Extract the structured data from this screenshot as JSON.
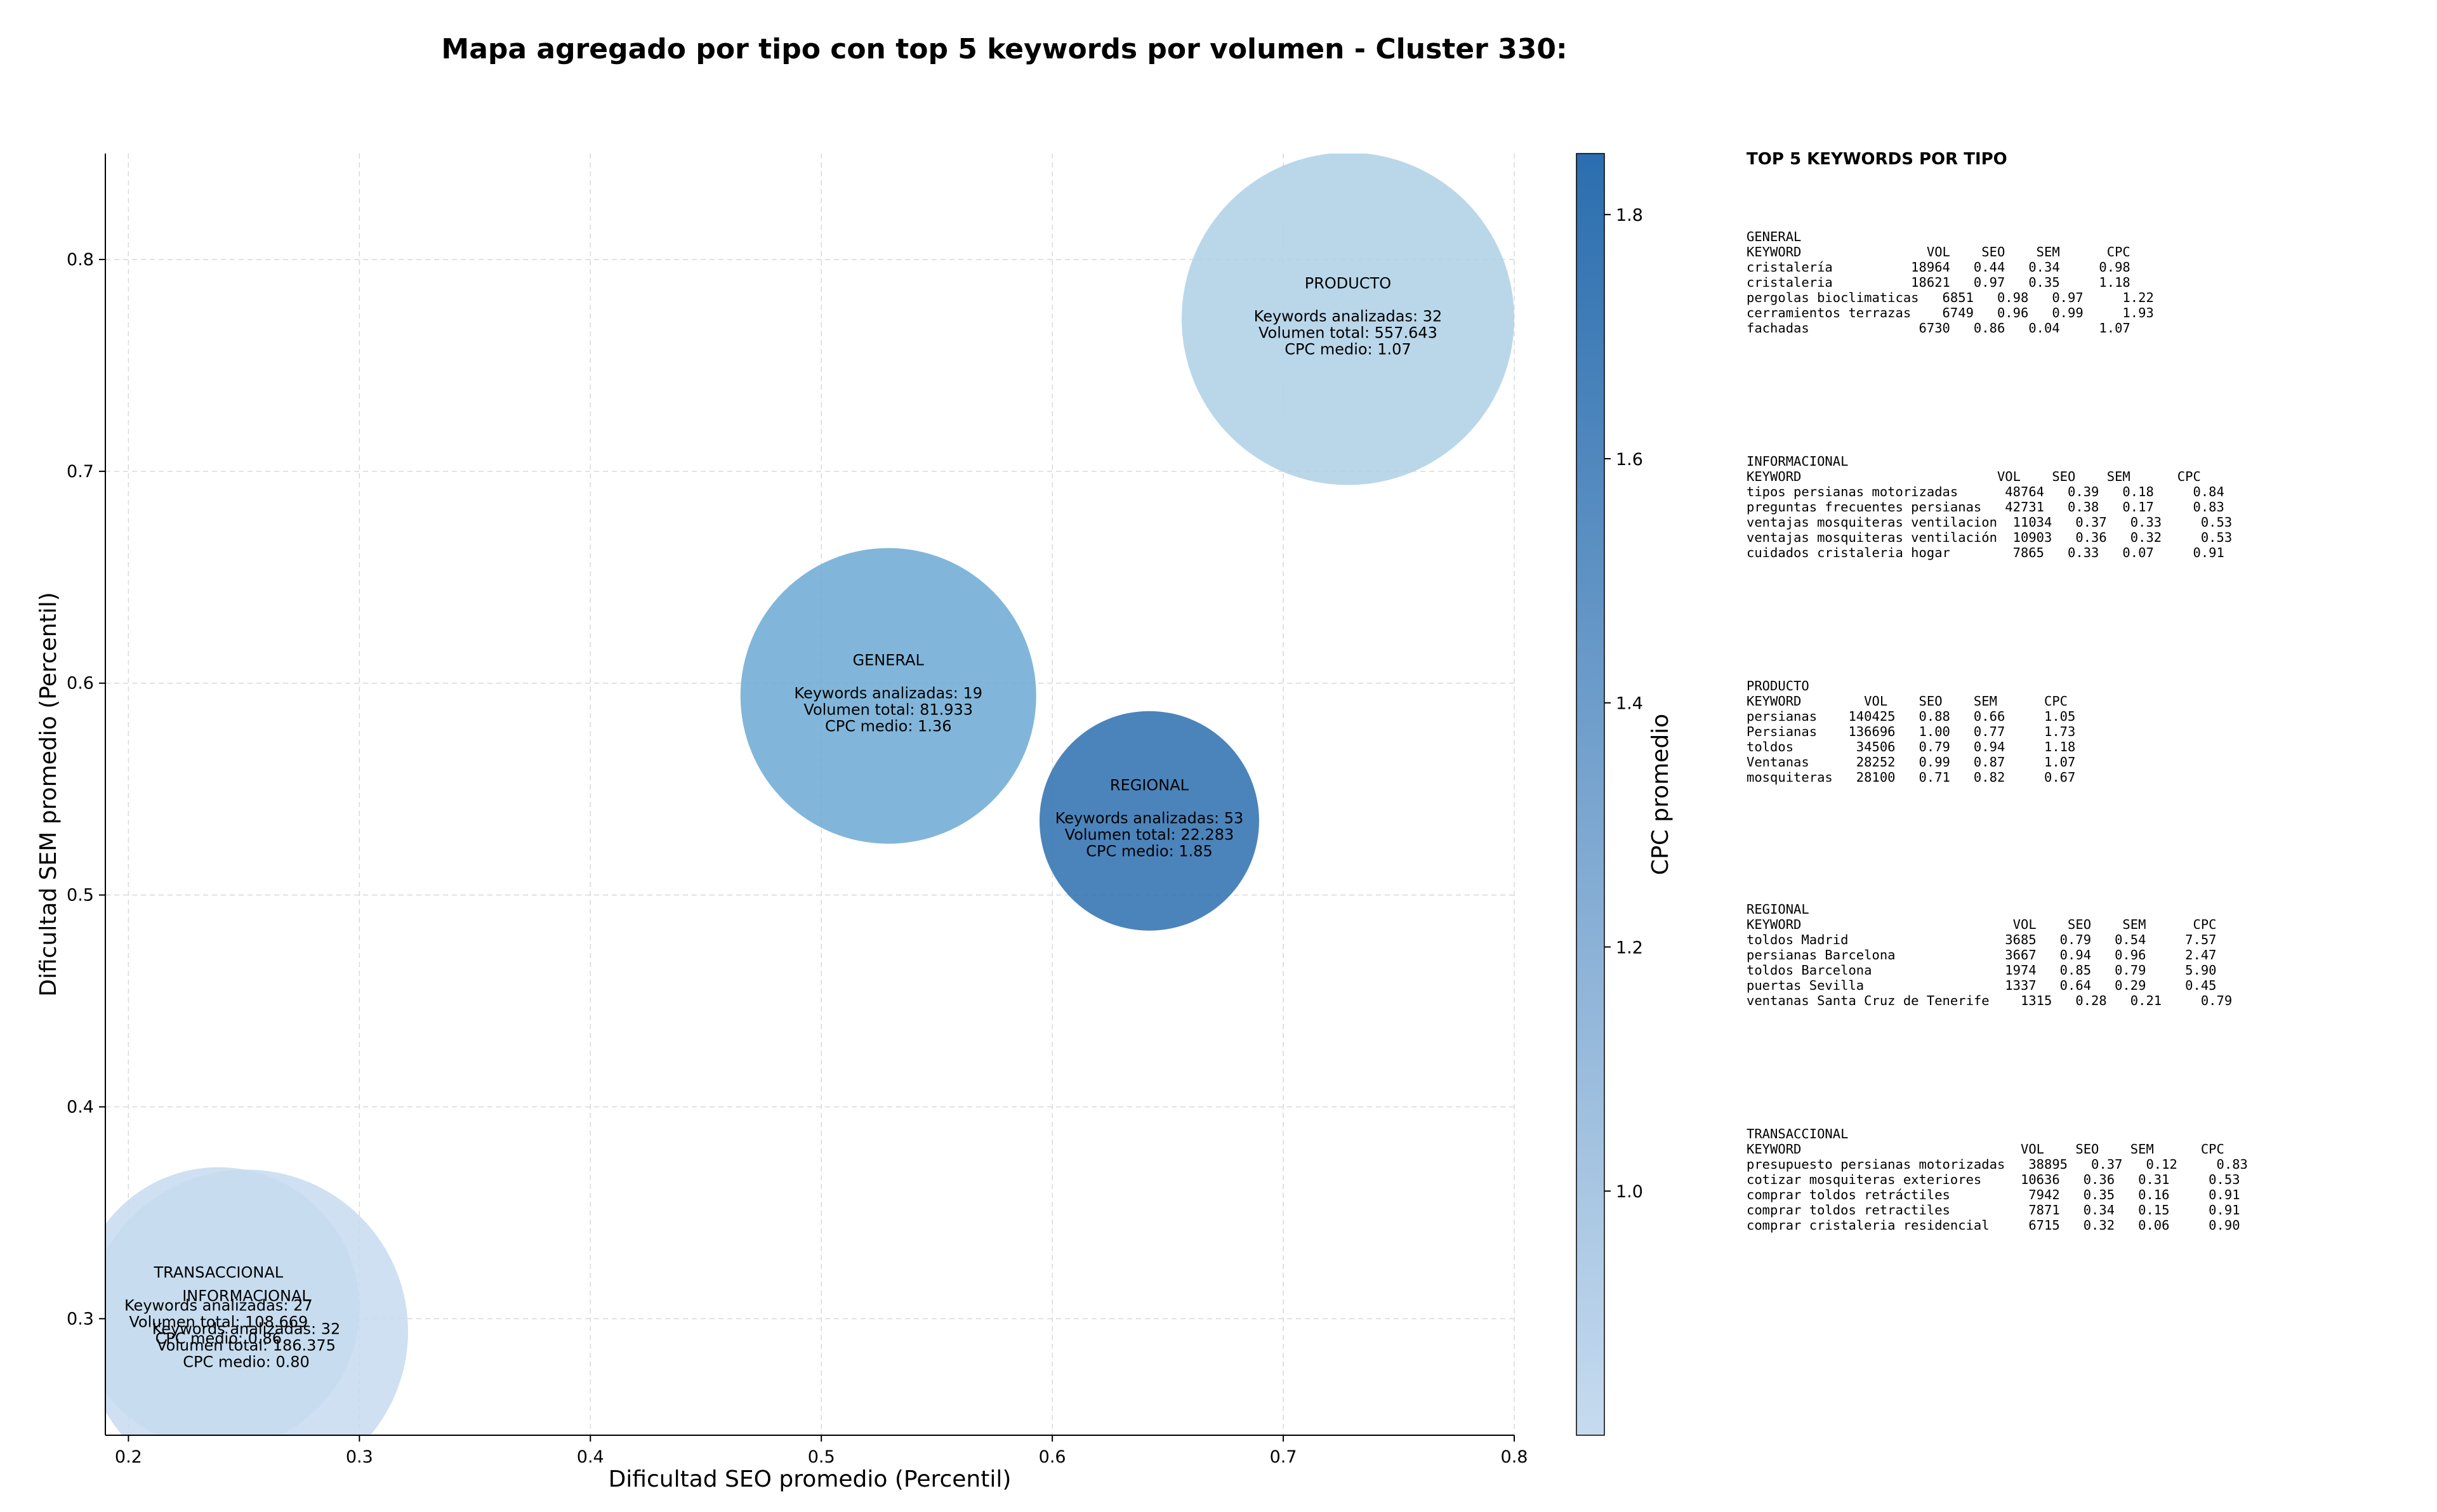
{
  "chart_data": {
    "type": "scatter",
    "title": "Mapa agregado por tipo con top 5 keywords por volumen - Cluster 330:",
    "xlabel": "Dificultad SEO promedio (Percentil)",
    "ylabel": "Dificultad SEM promedio (Percentil)",
    "xlim": [
      0.19,
      0.8
    ],
    "ylim": [
      0.245,
      0.85
    ],
    "xticks": [
      "0.2",
      "0.3",
      "0.4",
      "0.5",
      "0.6",
      "0.7",
      "0.8"
    ],
    "yticks": [
      "0.3",
      "0.4",
      "0.5",
      "0.6",
      "0.7",
      "0.8"
    ],
    "grid": true,
    "colorbar": {
      "label": "CPC promedio",
      "range": [
        0.8,
        1.85
      ],
      "ticks": [
        "1.0",
        "1.2",
        "1.4",
        "1.6",
        "1.8"
      ],
      "colors": [
        "#c6dbef",
        "#2b6eaf"
      ]
    },
    "bubbles": [
      {
        "name": "PRODUCTO",
        "x": 0.728,
        "y": 0.772,
        "keywords_label": "Keywords analizadas: 32",
        "volume_label": "Volumen total: 557.643",
        "cpc_label": "CPC medio: 1.07",
        "color": "#aed0e6"
      },
      {
        "name": "GENERAL",
        "x": 0.529,
        "y": 0.594,
        "keywords_label": "Keywords analizadas: 19",
        "volume_label": "Volumen total: 81.933",
        "cpc_label": "CPC medio: 1.36",
        "color": "#6ba9d3"
      },
      {
        "name": "REGIONAL",
        "x": 0.642,
        "y": 0.535,
        "keywords_label": "Keywords analizadas: 53",
        "volume_label": "Volumen total: 22.283",
        "cpc_label": "CPC medio: 1.85",
        "color": "#2b6eaf"
      },
      {
        "name": "INFORMACIONAL",
        "x": 0.251,
        "y": 0.294,
        "keywords_label": "Keywords analizadas: 32",
        "volume_label": "Volumen total: 186.375",
        "cpc_label": "CPC medio: 0.80",
        "color": "#c6dbef"
      },
      {
        "name": "TRANSACCIONAL",
        "x": 0.239,
        "y": 0.305,
        "keywords_label": "Keywords analizadas: 27",
        "volume_label": "Volumen total: 108.669",
        "cpc_label": "CPC medio: 0.86",
        "color": "#c6dbef"
      }
    ]
  },
  "side_panel": {
    "title": "TOP 5 KEYWORDS POR TIPO",
    "blocks": [
      {
        "id": "general",
        "text": "GENERAL\nKEYWORD                VOL    SEO    SEM      CPC\ncristalería          18964   0.44   0.34     0.98\ncristaleria          18621   0.97   0.35     1.18\npergolas bioclimaticas   6851   0.98   0.97     1.22\ncerramientos terrazas    6749   0.96   0.99     1.93\nfachadas              6730   0.86   0.04     1.07"
      },
      {
        "id": "informacional",
        "text": "INFORMACIONAL\nKEYWORD                         VOL    SEO    SEM      CPC\ntipos persianas motorizadas      48764   0.39   0.18     0.84\npreguntas frecuentes persianas   42731   0.38   0.17     0.83\nventajas mosquiteras ventilacion  11034   0.37   0.33     0.53\nventajas mosquiteras ventilación  10903   0.36   0.32     0.53\ncuidados cristaleria hogar        7865   0.33   0.07     0.91"
      },
      {
        "id": "producto",
        "text": "PRODUCTO\nKEYWORD        VOL    SEO    SEM      CPC\npersianas    140425   0.88   0.66     1.05\nPersianas    136696   1.00   0.77     1.73\ntoldos        34506   0.79   0.94     1.18\nVentanas      28252   0.99   0.87     1.07\nmosquiteras   28100   0.71   0.82     0.67"
      },
      {
        "id": "regional",
        "text": "REGIONAL\nKEYWORD                           VOL    SEO    SEM      CPC\ntoldos Madrid                    3685   0.79   0.54     7.57\npersianas Barcelona              3667   0.94   0.96     2.47\ntoldos Barcelona                 1974   0.85   0.79     5.90\npuertas Sevilla                  1337   0.64   0.29     0.45\nventanas Santa Cruz de Tenerife    1315   0.28   0.21     0.79"
      },
      {
        "id": "transaccional",
        "text": "TRANSACCIONAL\nKEYWORD                            VOL    SEO    SEM      CPC\npresupuesto persianas motorizadas   38895   0.37   0.12     0.83\ncotizar mosquiteras exteriores     10636   0.36   0.31     0.53\ncomprar toldos retráctiles          7942   0.35   0.16     0.91\ncomprar toldos retractiles          7871   0.34   0.15     0.91\ncomprar cristaleria residencial     6715   0.32   0.06     0.90"
      }
    ]
  }
}
